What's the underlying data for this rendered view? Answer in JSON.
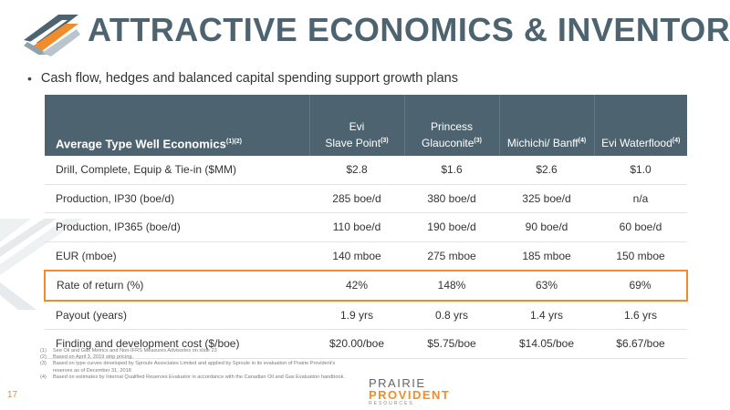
{
  "slide": {
    "title": "ATTRACTIVE ECONOMICS & INVENTORY",
    "bullet": "Cash flow, hedges and balanced capital spending support growth plans",
    "page_number": "17"
  },
  "table": {
    "header": {
      "metric": "Average Type Well Economics",
      "metric_sup": "(1)(2)",
      "col1_line1": "Evi",
      "col1_line2": "Slave Point",
      "col1_sup": "(3)",
      "col2_line1": "Princess",
      "col2_line2": "Glauconite",
      "col2_sup": "(3)",
      "col3": "Michichi/ Banff",
      "col3_sup": "(4)",
      "col4": "Evi Waterflood",
      "col4_sup": "(4)"
    },
    "rows": [
      {
        "metric": "Drill, Complete, Equip & Tie-in ($MM)",
        "values": [
          "$2.8",
          "$1.6",
          "$2.6",
          "$1.0"
        ]
      },
      {
        "metric": "Production, IP30 (boe/d)",
        "values": [
          "285 boe/d",
          "380 boe/d",
          "325 boe/d",
          "n/a"
        ]
      },
      {
        "metric": "Production, IP365 (boe/d)",
        "values": [
          "110 boe/d",
          "190 boe/d",
          "90 boe/d",
          "60 boe/d"
        ]
      },
      {
        "metric": "EUR (mboe)",
        "values": [
          "140 mboe",
          "275 mboe",
          "185 mboe",
          "150 mboe"
        ]
      },
      {
        "metric": "Rate of return (%)",
        "values": [
          "42%",
          "148%",
          "63%",
          "69%"
        ]
      },
      {
        "metric": "Payout (years)",
        "values": [
          "1.9 yrs",
          "0.8 yrs",
          "1.4 yrs",
          "1.6 yrs"
        ]
      },
      {
        "metric": "Finding and development cost ($/boe)",
        "values": [
          "$20.00/boe",
          "$5.75/boe",
          "$14.05/boe",
          "$6.67/boe"
        ]
      }
    ]
  },
  "footnotes": [
    {
      "num": "(1)",
      "text": "See Oil and Gas Metrics and Non-IFRS Measures Advisories on slide 23"
    },
    {
      "num": "(2)",
      "text": "Based on April 3, 2019 strip pricing."
    },
    {
      "num": "(3)",
      "text": "Based on type curves developed by Sproule Associates Limited and applied by Sproule in its evaluation of Prairie Provident's reserves as of December 31, 2018"
    },
    {
      "num": "(4)",
      "text": "Based on estimates by Internal Qualified Reserves Evaluator in accordance with the Canadian Oil and Gas Evaluation handbook."
    }
  ],
  "brand": {
    "line1": "PRAIRIE",
    "line2": "PROVIDENT",
    "line3": "RESOURCES"
  },
  "colors": {
    "header_bg": "#4d6470",
    "accent": "#f08c2c",
    "title": "#4d6470"
  },
  "icons": {
    "logo": "prairie-field-logo-icon"
  }
}
